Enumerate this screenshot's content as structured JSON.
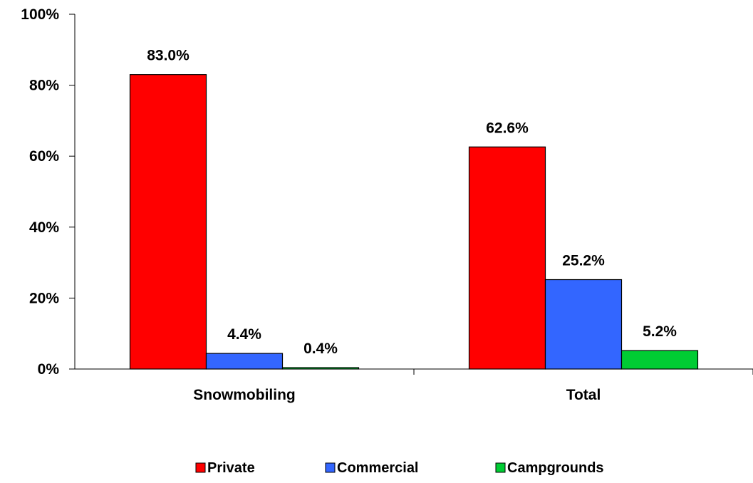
{
  "chart_data": {
    "type": "bar",
    "categories": [
      "Snowmobiling",
      "Total"
    ],
    "series": [
      {
        "name": "Private",
        "values": [
          83.0,
          62.6
        ],
        "labels": [
          "83.0%",
          "62.6%"
        ],
        "color": "#ff0000"
      },
      {
        "name": "Commercial",
        "values": [
          4.4,
          25.2
        ],
        "labels": [
          "4.4%",
          "25.2%"
        ],
        "color": "#3366ff"
      },
      {
        "name": "Campgrounds",
        "values": [
          0.4,
          5.2
        ],
        "labels": [
          "0.4%",
          "5.2%"
        ],
        "color": "#00cc33"
      }
    ],
    "yticks": [
      "0%",
      "20%",
      "40%",
      "60%",
      "80%",
      "100%"
    ],
    "ylim": [
      0,
      100
    ],
    "grid": false,
    "legend_position": "bottom",
    "title": "",
    "xlabel": "",
    "ylabel": ""
  }
}
